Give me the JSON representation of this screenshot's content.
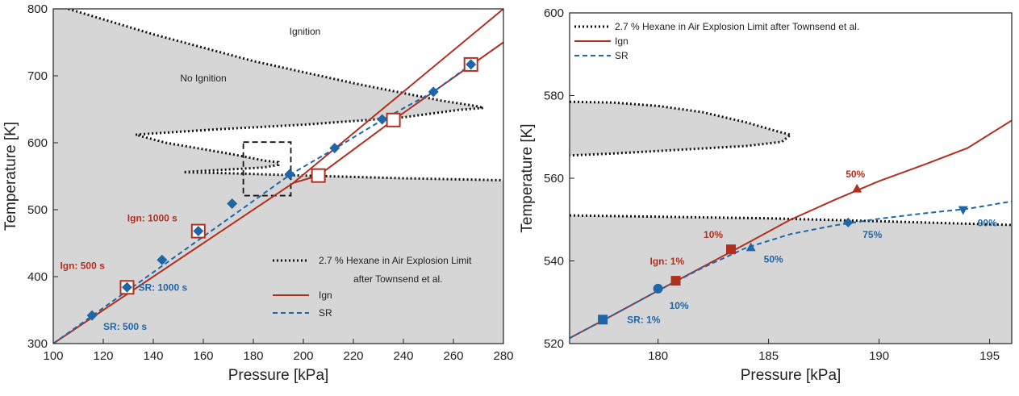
{
  "colors": {
    "ign": "#b03020",
    "sr": "#1f66a8",
    "limit": "#111111",
    "shade": "#d6d6d6"
  },
  "chart_data": [
    {
      "type": "line",
      "xlabel": "Pressure [kPa]",
      "ylabel": "Temperature [K]",
      "xlim": [
        100,
        280
      ],
      "ylim": [
        300,
        800
      ],
      "xticks": [
        100,
        120,
        140,
        160,
        180,
        200,
        220,
        240,
        260,
        280
      ],
      "yticks": [
        300,
        400,
        500,
        600,
        700,
        800
      ],
      "legend": {
        "position": "bottom-right",
        "entries": [
          {
            "key": "limit",
            "label_lines": [
              "2.7 % Hexane in Air Explosion Limit",
              "after Townsend et al."
            ]
          },
          {
            "key": "ign",
            "label_lines": [
              "Ign"
            ]
          },
          {
            "key": "sr",
            "label_lines": [
              "SR"
            ]
          }
        ]
      },
      "region_labels": [
        "Ignition",
        "No Ignition"
      ],
      "explosion_limit": [
        [
          106,
          800
        ],
        [
          140,
          762
        ],
        [
          180,
          722
        ],
        [
          220,
          689
        ],
        [
          255,
          663
        ],
        [
          269,
          655
        ],
        [
          272,
          652
        ],
        [
          262,
          649
        ],
        [
          240,
          638
        ],
        [
          200,
          627
        ],
        [
          165,
          620
        ],
        [
          133,
          612
        ],
        [
          145,
          600
        ],
        [
          170,
          584
        ],
        [
          185,
          573
        ],
        [
          190,
          571
        ],
        [
          190,
          567
        ],
        [
          184,
          563
        ],
        [
          170,
          560
        ],
        [
          160,
          558
        ],
        [
          152,
          556
        ],
        [
          175,
          554
        ],
        [
          200,
          551
        ],
        [
          240,
          547
        ],
        [
          280,
          544
        ]
      ],
      "series": [
        {
          "name": "Ign",
          "key": "ign",
          "line_points": [
            [
              100,
              300
            ],
            [
              196,
              540
            ],
            [
              280,
              800
            ]
          ],
          "line_points_2": [
            [
              196,
              540
            ],
            [
              206,
              551
            ],
            [
              236,
              634
            ],
            [
              280,
              750
            ]
          ],
          "markers": [
            [
              129.5,
              384
            ],
            [
              158,
              468
            ],
            [
              206,
              551
            ],
            [
              236,
              634
            ],
            [
              267,
              717
            ]
          ],
          "marker": "square-open"
        },
        {
          "name": "SR",
          "key": "sr",
          "line_points": [
            [
              100,
              300
            ],
            [
              195,
              553
            ],
            [
              213,
              592
            ],
            [
              232,
              635
            ],
            [
              252,
              676
            ],
            [
              267,
              717
            ]
          ],
          "markers": [
            [
              115.5,
              342
            ],
            [
              129.5,
              384
            ],
            [
              143.5,
              425
            ],
            [
              158,
              468
            ],
            [
              171.5,
              509
            ],
            [
              194.5,
              553
            ],
            [
              212.5,
              592
            ],
            [
              231.5,
              635
            ],
            [
              252,
              676
            ],
            [
              267,
              717
            ]
          ],
          "marker": "diamond"
        }
      ],
      "zoom_box": {
        "x": [
          176,
          195
        ],
        "y": [
          521,
          601
        ]
      },
      "annotations": [
        {
          "text": "Ign: 1000 s",
          "key": "ign",
          "at": [
            158,
            468
          ]
        },
        {
          "text": "Ign: 500 s",
          "key": "ign",
          "at": [
            129.5,
            384
          ]
        },
        {
          "text": "SR: 1000 s",
          "key": "sr",
          "at": [
            129.5,
            384
          ]
        },
        {
          "text": "SR: 500 s",
          "key": "sr",
          "at": [
            115.5,
            342
          ]
        }
      ]
    },
    {
      "type": "line",
      "xlabel": "Pressure [kPa]",
      "ylabel": "Temperature [K]",
      "xlim": [
        176,
        196
      ],
      "ylim": [
        520,
        600
      ],
      "xticks": [
        180,
        185,
        190,
        195
      ],
      "yticks": [
        520,
        540,
        560,
        580,
        600
      ],
      "legend": {
        "position": "top-left",
        "entries": [
          {
            "key": "limit",
            "label_lines": [
              "2.7 % Hexane in Air Explosion Limit after Townsend et al."
            ]
          },
          {
            "key": "ign",
            "label_lines": [
              "Ign"
            ]
          },
          {
            "key": "sr",
            "label_lines": [
              "SR"
            ]
          }
        ]
      },
      "explosion_limit_upper": [
        [
          176,
          578.5
        ],
        [
          178,
          578.3
        ],
        [
          180,
          577.5
        ],
        [
          182,
          576
        ],
        [
          184,
          573.5
        ],
        [
          185.3,
          571.5
        ],
        [
          186,
          570.5
        ],
        [
          185.6,
          568.8
        ],
        [
          184,
          567.8
        ],
        [
          182,
          567.2
        ],
        [
          180,
          566.6
        ],
        [
          178,
          566
        ],
        [
          176,
          565.5
        ]
      ],
      "explosion_limit_lower": [
        [
          176,
          551
        ],
        [
          180,
          550.7
        ],
        [
          185,
          550.3
        ],
        [
          190,
          549.6
        ],
        [
          196,
          548.7
        ]
      ],
      "series": [
        {
          "name": "Ign",
          "key": "ign",
          "line_points": [
            [
              176,
              521.3
            ],
            [
              178,
              527
            ],
            [
              180,
              532.8
            ],
            [
              182,
              538.5
            ],
            [
              184,
              544.2
            ],
            [
              186,
              550
            ],
            [
              188,
              554.8
            ],
            [
              190,
              559.3
            ],
            [
              192,
              563.2
            ],
            [
              194,
              567.3
            ],
            [
              196,
              574
            ]
          ],
          "markers": [
            {
              "x": 180.8,
              "y": 535.2,
              "shape": "square",
              "label": "Ign: 1%"
            },
            {
              "x": 183.3,
              "y": 542.8,
              "shape": "square",
              "label": "10%"
            },
            {
              "x": 189.0,
              "y": 557.5,
              "shape": "triangle-up",
              "label": "50%"
            }
          ]
        },
        {
          "name": "SR",
          "key": "sr",
          "line_points": [
            [
              176,
              521.3
            ],
            [
              178,
              527
            ],
            [
              180,
              532.8
            ],
            [
              182,
              538.3
            ],
            [
              184,
              543.2
            ],
            [
              186,
              546.5
            ],
            [
              188,
              548.6
            ],
            [
              190,
              550.2
            ],
            [
              192,
              551.5
            ],
            [
              194,
              552.6
            ],
            [
              196,
              554.4
            ]
          ],
          "markers": [
            {
              "x": 177.5,
              "y": 525.8,
              "shape": "square",
              "label": "SR: 1%"
            },
            {
              "x": 180.0,
              "y": 533.3,
              "shape": "circle",
              "label": "10%"
            },
            {
              "x": 184.2,
              "y": 543.3,
              "shape": "triangle-up",
              "label": "50%"
            },
            {
              "x": 188.6,
              "y": 549.3,
              "shape": "diamond",
              "label": "75%"
            },
            {
              "x": 193.8,
              "y": 552.3,
              "shape": "triangle-down",
              "label": "90%"
            }
          ]
        }
      ]
    }
  ]
}
